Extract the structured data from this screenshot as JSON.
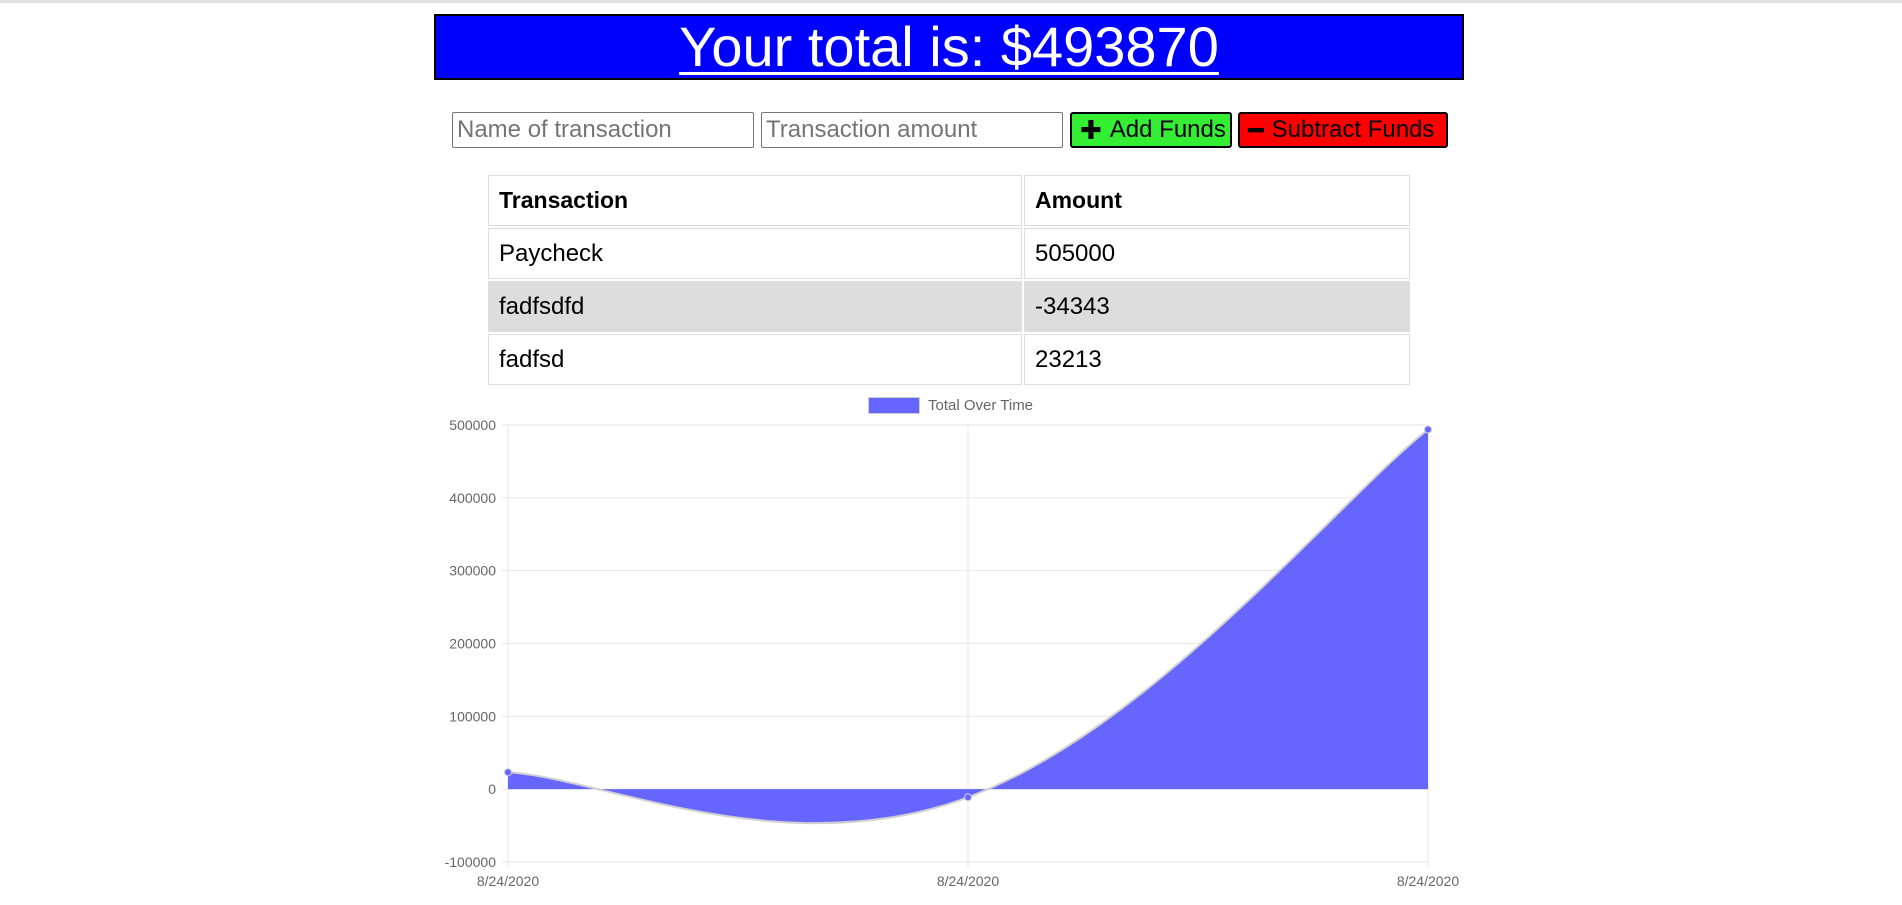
{
  "header": {
    "total_label": "Your total is: $493870"
  },
  "form": {
    "name_placeholder": "Name of transaction",
    "amount_placeholder": "Transaction amount",
    "add_label": "Add Funds",
    "subtract_label": "Subtract Funds",
    "add_icon": "plus-icon",
    "subtract_icon": "minus-icon"
  },
  "colors": {
    "banner_bg": "#0000ff",
    "add_button": "#33ee33",
    "subtract_button": "#ff0000",
    "chart_fill": "#6666ff",
    "row_shade": "#dddddd"
  },
  "table": {
    "headers": [
      "Transaction",
      "Amount"
    ],
    "rows": [
      {
        "name": "Paycheck",
        "amount": "505000"
      },
      {
        "name": "fadfsdfd",
        "amount": "-34343"
      },
      {
        "name": "fadfsd",
        "amount": "23213"
      }
    ]
  },
  "chart_data": {
    "type": "area",
    "series": [
      {
        "name": "Total Over Time",
        "values": [
          23213,
          -11130,
          493870
        ]
      }
    ],
    "categories": [
      "8/24/2020",
      "8/24/2020",
      "8/24/2020"
    ],
    "y_ticks": [
      500000,
      400000,
      300000,
      200000,
      100000,
      0,
      -100000
    ],
    "ylim": [
      -100000,
      500000
    ],
    "grid": true,
    "legend": "top-center",
    "smooth": true
  }
}
